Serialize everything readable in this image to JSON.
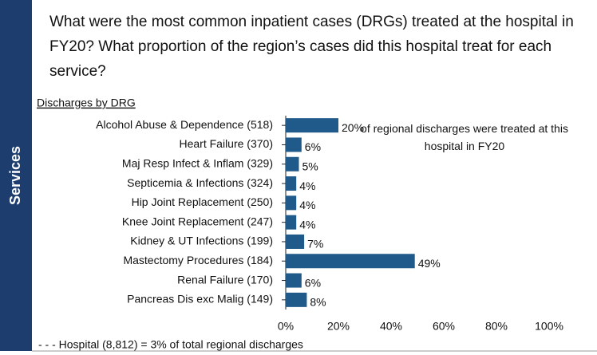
{
  "chart_data": {
    "type": "bar",
    "orientation": "horizontal",
    "title": "What were the most common inpatient cases (DRGs) treated at the hospital in FY20? What proportion of the region’s cases did this hospital treat for each service?",
    "section": "Services",
    "subtitle": "Discharges by DRG",
    "annotation": "of regional discharges were treated at this hospital in FY20",
    "footer": "- - - Hospital  (8,812) = 3%  of total regional discharges",
    "categories": [
      "Alcohol Abuse & Dependence (518)",
      "Heart Failure (370)",
      "Maj Resp Infect & Inflam (329)",
      "Septicemia & Infections (324)",
      "Hip Joint Replacement (250)",
      "Knee Joint Replacement (247)",
      "Kidney & UT Infections (199)",
      "Mastectomy Procedures (184)",
      "Renal Failure (170)",
      "Pancreas Dis exc Malig (149)"
    ],
    "values": [
      20,
      6,
      5,
      4,
      4,
      4,
      7,
      49,
      6,
      8
    ],
    "value_labels": [
      "20%",
      "6%",
      "5%",
      "4%",
      "4%",
      "4%",
      "7%",
      "49%",
      "6%",
      "8%"
    ],
    "color": "#1f5a8a",
    "xlim": [
      0,
      100
    ],
    "xticks": [
      {
        "value": 0,
        "label": "0%"
      },
      {
        "value": 20,
        "label": "20%"
      },
      {
        "value": 40,
        "label": "40%"
      },
      {
        "value": 60,
        "label": "60%"
      },
      {
        "value": 80,
        "label": "80%"
      },
      {
        "value": 100,
        "label": "100%"
      }
    ]
  }
}
